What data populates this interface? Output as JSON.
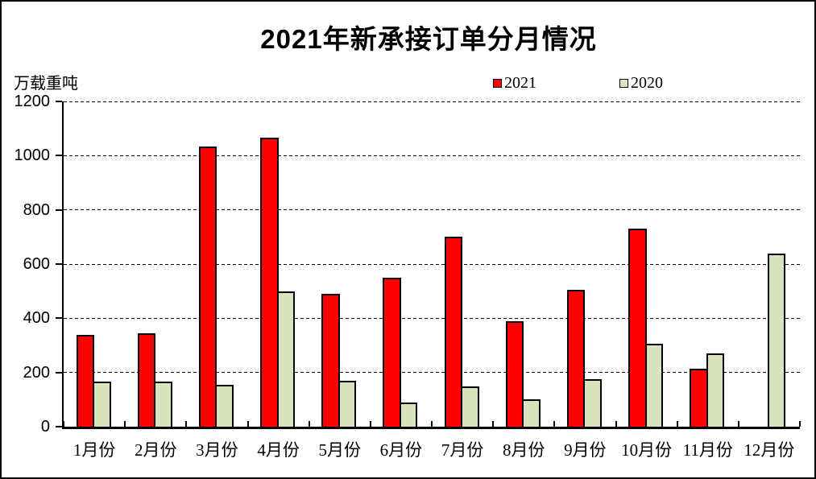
{
  "canvas": {
    "background": "#ffffff",
    "border_color": "#000000"
  },
  "chart_data": {
    "type": "bar",
    "title": "2021年新承接订单分月情况",
    "unit_label": "万载重吨",
    "categories": [
      "1月份",
      "2月份",
      "3月份",
      "4月份",
      "5月份",
      "6月份",
      "7月份",
      "8月份",
      "9月份",
      "10月份",
      "11月份",
      "12月份"
    ],
    "series": [
      {
        "name": "2021",
        "color": "#ff0000",
        "values": [
          340,
          345,
          1035,
          1065,
          490,
          550,
          700,
          390,
          505,
          730,
          215,
          0
        ]
      },
      {
        "name": "2020",
        "color": "#d8e4bc",
        "values": [
          165,
          165,
          155,
          500,
          170,
          90,
          150,
          100,
          175,
          305,
          270,
          640
        ]
      }
    ],
    "ylim": [
      0,
      1200
    ],
    "yticks": [
      0,
      200,
      400,
      600,
      800,
      1000,
      1200
    ],
    "grid": "horizontal-dashed",
    "legend_position": "top-center",
    "bar_border_color": "#000000"
  }
}
